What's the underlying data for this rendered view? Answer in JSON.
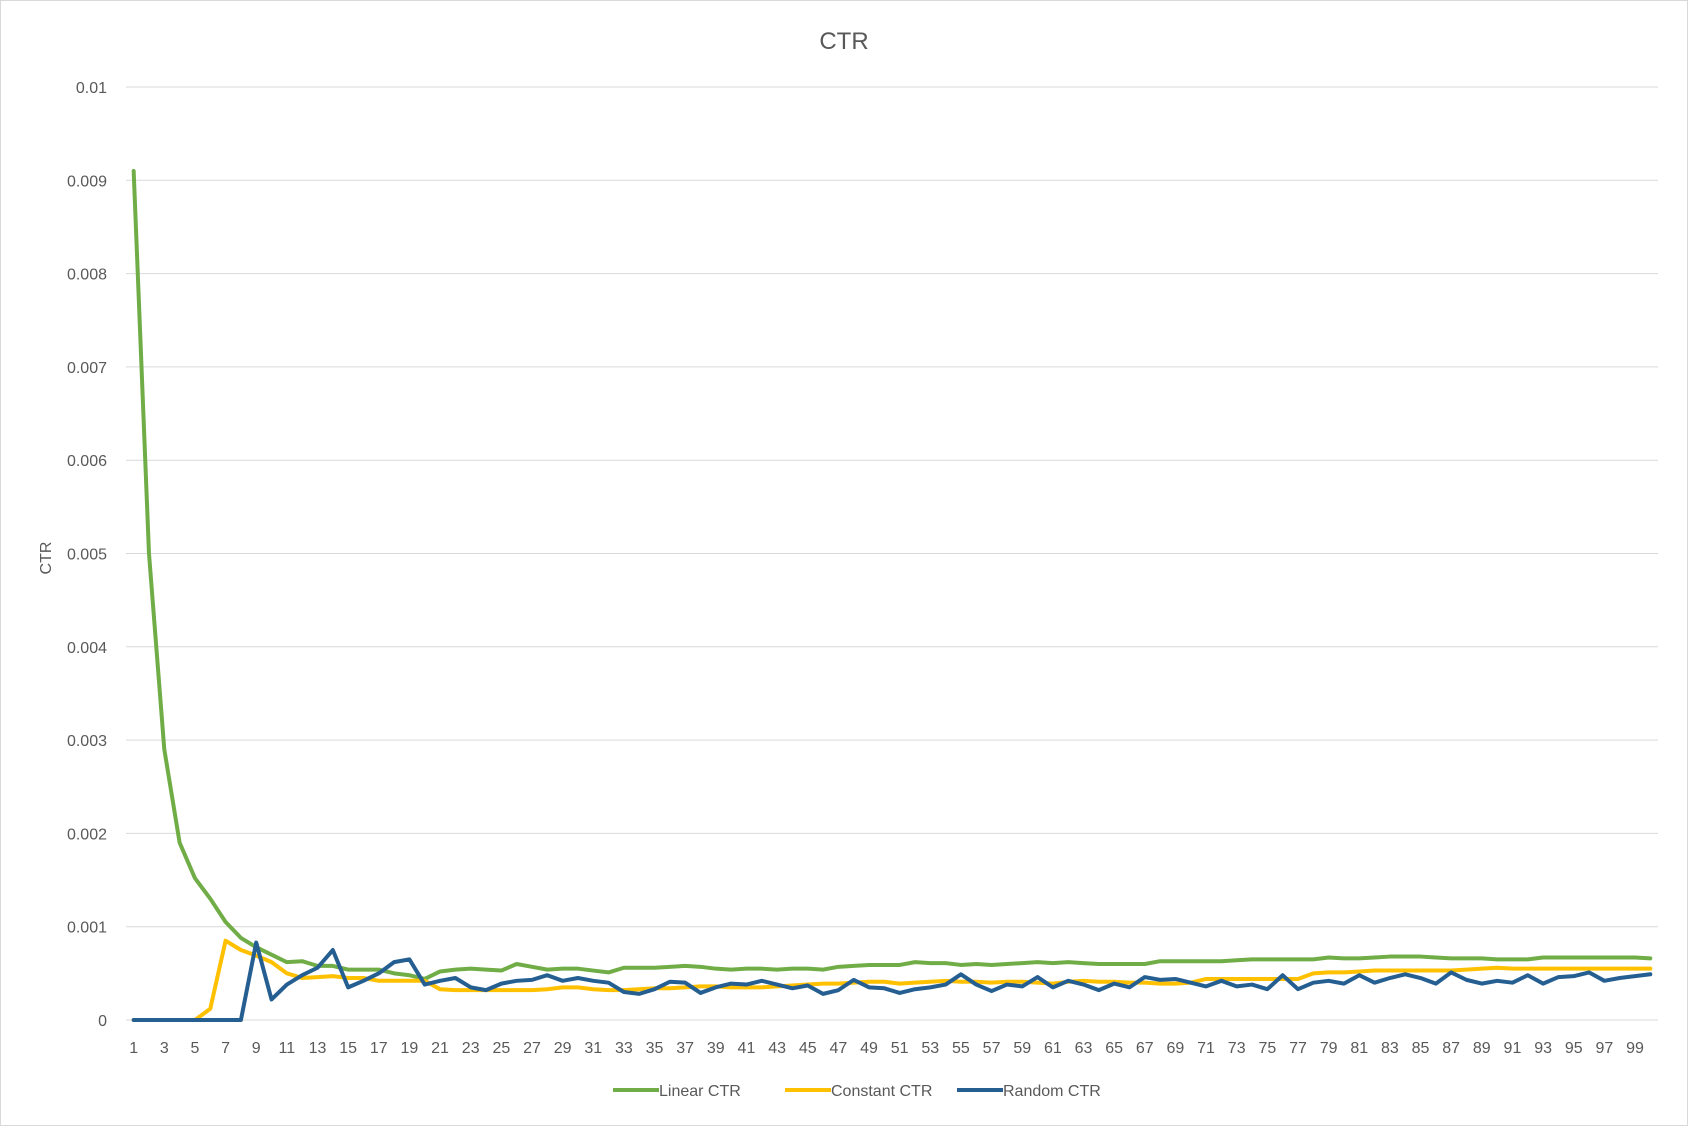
{
  "chart_data": {
    "type": "line",
    "title": "CTR",
    "xlabel": "",
    "ylabel": "CTR",
    "ylim": [
      0,
      0.01
    ],
    "yticks": [
      "0",
      "0.001",
      "0.002",
      "0.003",
      "0.004",
      "0.005",
      "0.006",
      "0.007",
      "0.008",
      "0.009",
      "0.01"
    ],
    "x": [
      1,
      2,
      3,
      4,
      5,
      6,
      7,
      8,
      9,
      10,
      11,
      12,
      13,
      14,
      15,
      16,
      17,
      18,
      19,
      20,
      21,
      22,
      23,
      24,
      25,
      26,
      27,
      28,
      29,
      30,
      31,
      32,
      33,
      34,
      35,
      36,
      37,
      38,
      39,
      40,
      41,
      42,
      43,
      44,
      45,
      46,
      47,
      48,
      49,
      50,
      51,
      52,
      53,
      54,
      55,
      56,
      57,
      58,
      59,
      60,
      61,
      62,
      63,
      64,
      65,
      66,
      67,
      68,
      69,
      70,
      71,
      72,
      73,
      74,
      75,
      76,
      77,
      78,
      79,
      80,
      81,
      82,
      83,
      84,
      85,
      86,
      87,
      88,
      89,
      90,
      91,
      92,
      93,
      94,
      95,
      96,
      97,
      98,
      99,
      100
    ],
    "xtick_labels": [
      "1",
      "3",
      "5",
      "7",
      "9",
      "11",
      "13",
      "15",
      "17",
      "19",
      "21",
      "23",
      "25",
      "27",
      "29",
      "31",
      "33",
      "35",
      "37",
      "39",
      "41",
      "43",
      "45",
      "47",
      "49",
      "51",
      "53",
      "55",
      "57",
      "59",
      "61",
      "63",
      "65",
      "67",
      "69",
      "71",
      "73",
      "75",
      "77",
      "79",
      "81",
      "83",
      "85",
      "87",
      "89",
      "91",
      "93",
      "95",
      "97",
      "99"
    ],
    "grid": true,
    "legend_position": "bottom",
    "series": [
      {
        "name": "Linear CTR",
        "color": "#70ad47",
        "values": [
          0.0091,
          0.005,
          0.0029,
          0.0019,
          0.00152,
          0.0013,
          0.00105,
          0.00088,
          0.00078,
          0.0007,
          0.00062,
          0.00063,
          0.00058,
          0.00058,
          0.00054,
          0.00054,
          0.00054,
          0.0005,
          0.00048,
          0.00044,
          0.00052,
          0.00054,
          0.00055,
          0.00054,
          0.00053,
          0.0006,
          0.00057,
          0.00054,
          0.00055,
          0.00055,
          0.00053,
          0.00051,
          0.00056,
          0.00056,
          0.00056,
          0.00057,
          0.00058,
          0.00057,
          0.00055,
          0.00054,
          0.00055,
          0.00055,
          0.00054,
          0.00055,
          0.00055,
          0.00054,
          0.00057,
          0.00058,
          0.00059,
          0.00059,
          0.00059,
          0.00062,
          0.00061,
          0.00061,
          0.00059,
          0.0006,
          0.00059,
          0.0006,
          0.00061,
          0.00062,
          0.00061,
          0.00062,
          0.00061,
          0.0006,
          0.0006,
          0.0006,
          0.0006,
          0.00063,
          0.00063,
          0.00063,
          0.00063,
          0.00063,
          0.00064,
          0.00065,
          0.00065,
          0.00065,
          0.00065,
          0.00065,
          0.00067,
          0.00066,
          0.00066,
          0.00067,
          0.00068,
          0.00068,
          0.00068,
          0.00067,
          0.00066,
          0.00066,
          0.00066,
          0.00065,
          0.00065,
          0.00065,
          0.00067,
          0.00067,
          0.00067,
          0.00067,
          0.00067,
          0.00067,
          0.00067,
          0.00066
        ]
      },
      {
        "name": "Constant CTR",
        "color": "#ffc000",
        "values": [
          0,
          0,
          0,
          0,
          0,
          0.00012,
          0.00085,
          0.00075,
          0.00069,
          0.00062,
          0.0005,
          0.00045,
          0.00046,
          0.00047,
          0.00045,
          0.00045,
          0.00042,
          0.00042,
          0.00042,
          0.00042,
          0.00033,
          0.00032,
          0.00032,
          0.00032,
          0.00032,
          0.00032,
          0.00032,
          0.00033,
          0.00035,
          0.00035,
          0.00033,
          0.00032,
          0.00032,
          0.00033,
          0.00034,
          0.00034,
          0.00035,
          0.00036,
          0.00036,
          0.00035,
          0.00035,
          0.00035,
          0.00036,
          0.00037,
          0.00038,
          0.00039,
          0.00039,
          0.0004,
          0.00041,
          0.00041,
          0.00039,
          0.0004,
          0.00041,
          0.00042,
          0.00041,
          0.00041,
          0.0004,
          0.00041,
          0.00041,
          0.0004,
          0.00039,
          0.00041,
          0.00042,
          0.00041,
          0.00041,
          0.0004,
          0.0004,
          0.00039,
          0.00039,
          0.0004,
          0.00044,
          0.00044,
          0.00044,
          0.00044,
          0.00044,
          0.00044,
          0.00044,
          0.0005,
          0.00051,
          0.00051,
          0.00052,
          0.00053,
          0.00053,
          0.00053,
          0.00053,
          0.00053,
          0.00053,
          0.00054,
          0.00055,
          0.00056,
          0.00055,
          0.00055,
          0.00055,
          0.00055,
          0.00055,
          0.00055,
          0.00055,
          0.00055,
          0.00055,
          0.00055
        ]
      },
      {
        "name": "Random CTR",
        "color": "#255e91",
        "values": [
          0,
          0,
          0,
          0,
          0,
          0,
          0,
          0,
          0.00083,
          0.00022,
          0.00038,
          0.00048,
          0.00056,
          0.00075,
          0.00035,
          0.00042,
          0.0005,
          0.00062,
          0.00065,
          0.00038,
          0.00042,
          0.00045,
          0.00035,
          0.00032,
          0.00039,
          0.00042,
          0.00043,
          0.00048,
          0.00042,
          0.00045,
          0.00042,
          0.0004,
          0.0003,
          0.00028,
          0.00033,
          0.00041,
          0.0004,
          0.00029,
          0.00035,
          0.00039,
          0.00038,
          0.00042,
          0.00038,
          0.00034,
          0.00037,
          0.00028,
          0.00032,
          0.00043,
          0.00035,
          0.00034,
          0.00029,
          0.00033,
          0.00035,
          0.00038,
          0.00049,
          0.00038,
          0.00031,
          0.00038,
          0.00036,
          0.00046,
          0.00035,
          0.00042,
          0.00038,
          0.00032,
          0.00039,
          0.00035,
          0.00046,
          0.00043,
          0.00044,
          0.0004,
          0.00036,
          0.00042,
          0.00036,
          0.00038,
          0.00033,
          0.00048,
          0.00033,
          0.0004,
          0.00042,
          0.00039,
          0.00048,
          0.0004,
          0.00045,
          0.00049,
          0.00045,
          0.00039,
          0.00051,
          0.00043,
          0.00039,
          0.00042,
          0.0004,
          0.00048,
          0.00039,
          0.00046,
          0.00047,
          0.00051,
          0.00042,
          0.00045,
          0.00047,
          0.00049
        ]
      }
    ]
  }
}
